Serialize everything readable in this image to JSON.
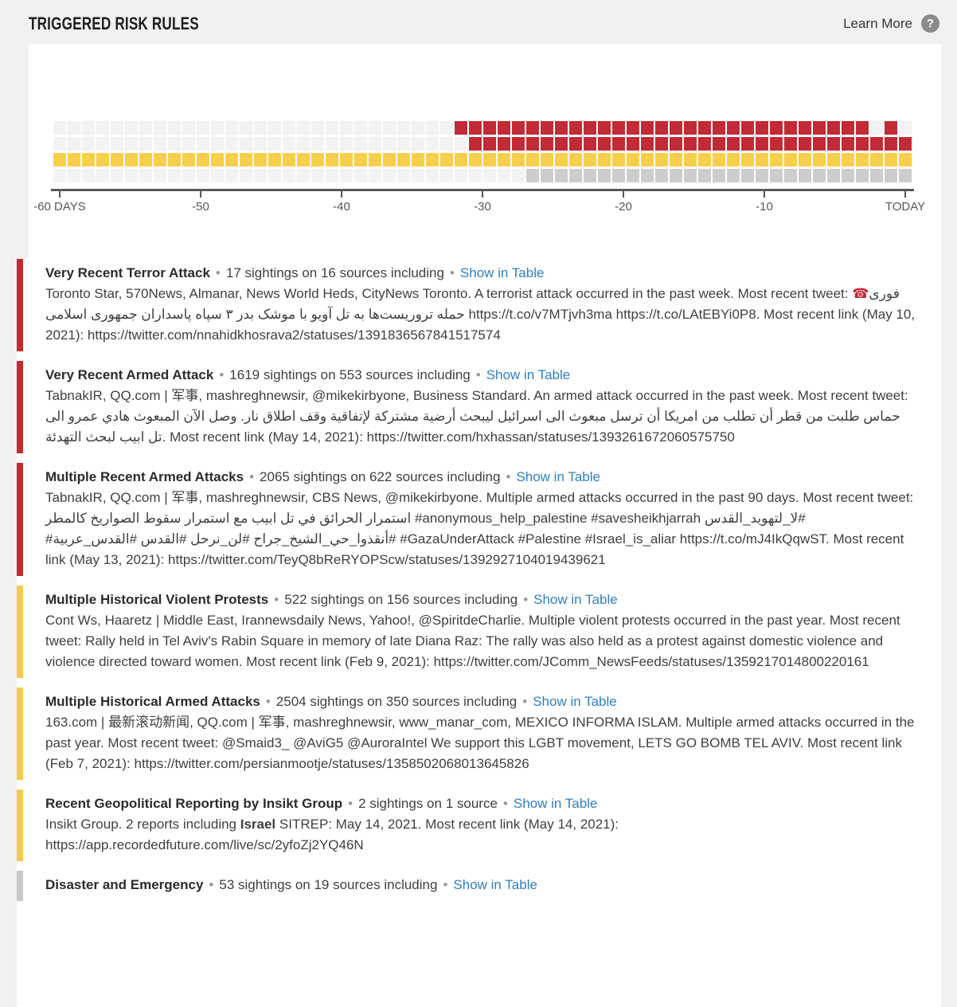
{
  "header": {
    "title": "TRIGGERED RISK RULES",
    "learn_more": "Learn More",
    "help_icon": "?"
  },
  "chart_data": {
    "type": "heatmap",
    "title": "Triggered risk rules over the last 60 days",
    "columns": 60,
    "x_axis": {
      "tick_labels": [
        "-60 DAYS",
        "-50",
        "-40",
        "-30",
        "-20",
        "-10",
        "TODAY"
      ],
      "range_days": 60,
      "grid": false
    },
    "empty_color": "#f4f3f3",
    "rows": [
      {
        "name": "critical-row-1",
        "color": "#c22b35",
        "segments": [
          [
            28,
            56
          ],
          [
            58,
            58
          ]
        ]
      },
      {
        "name": "critical-row-2",
        "color": "#c22b35",
        "segments": [
          [
            29,
            59
          ]
        ]
      },
      {
        "name": "warning-row",
        "color": "#f8cf4c",
        "segments": [
          [
            0,
            59
          ]
        ]
      },
      {
        "name": "info-row",
        "color": "#cdcdcd",
        "segments": [
          [
            33,
            59
          ]
        ]
      }
    ]
  },
  "rules": {
    "separator": "•",
    "entries": [
      {
        "severity": "critical",
        "color": "#c22b35",
        "title": "Very Recent Terror Attack",
        "meta": "17 sightings on 16 sources including",
        "link_label": "Show in Table",
        "body": [
          {
            "t": "Toronto Star, 570News, Almanar, News World Heds, CityNews Toronto. A terrorist attack occurred in the past week. Most recent tweet: "
          },
          {
            "t": "☎",
            "emoji": true
          },
          {
            "t": "فوری حمله تروریست‌ها به تل آویو با موشک بدر ۳ سپاه پاسداران جمهوری اسلامی",
            "rtl": true
          },
          {
            "t": " https://t.co/v7MTjvh3ma https://t.co/LAtEBYi0P8. Most recent link (May 10, 2021): https://twitter.com/nnahidkhosrava2/statuses/1391836567841517574"
          }
        ]
      },
      {
        "severity": "critical",
        "color": "#c22b35",
        "title": "Very Recent Armed Attack",
        "meta": "1619 sightings on 553 sources including",
        "link_label": "Show in Table",
        "body": [
          {
            "t": "TabnakIR, QQ.com | 军事, mashreghnewsir, @mikekirbyone, Business Standard. An armed attack occurred in the past week. Most recent tweet: "
          },
          {
            "t": "حماس طلبت من قطر أن تطلب من امريكا أن ترسل مبعوث الى اسرائيل ليبحث أرضية مشتركة لإتفاقية وقف اطلاق نار. وصل الآن المبعوث هادي عمرو الى تل ابيب لبحث التهدئة",
            "rtl": true
          },
          {
            "t": ". Most recent link (May 14, 2021): https://twitter.com/hxhassan/statuses/1393261672060575750"
          }
        ]
      },
      {
        "severity": "critical",
        "color": "#c22b35",
        "title": "Multiple Recent Armed Attacks",
        "meta": "2065 sightings on 622 sources including",
        "link_label": "Show in Table",
        "body": [
          {
            "t": "TabnakIR, QQ.com | 军事, mashreghnewsir, CBS News, @mikekirbyone. Multiple armed attacks occurred in the past 90 days. Most recent tweet: "
          },
          {
            "t": "استمرار الحرائق في تل ابيب مع استمرار سقوط الصواريخ كالمطر",
            "rtl": true
          },
          {
            "t": " #anonymous_help_palestine #savesheikhjarrah "
          },
          {
            "t": "#لا_لتهويد_القدس #أنقذوا_حي_الشيخ_جراح #لن_نرحل #القدس #القدس_عربية#",
            "rtl": true
          },
          {
            "t": " #GazaUnderAttack #Palestine #Israel_is_aliar https://t.co/mJ4IkQqwST. Most recent link (May 13, 2021): https://twitter.com/TeyQ8bReRYOPScw/statuses/1392927104019439621"
          }
        ]
      },
      {
        "severity": "warning",
        "color": "#f6c84f",
        "title": "Multiple Historical Violent Protests",
        "meta": "522 sightings on 156 sources including",
        "link_label": "Show in Table",
        "body": [
          {
            "t": "Cont Ws, Haaretz | Middle East, Irannewsdaily News, Yahoo!, @SpiritdeCharlie. Multiple violent protests occurred in the past year. Most recent tweet: Rally held in Tel Aviv's Rabin Square in memory of late Diana Raz: The rally was also held as a protest against domestic violence and violence directed toward women. Most recent link (Feb 9, 2021): https://twitter.com/JComm_NewsFeeds/statuses/1359217014800220161"
          }
        ]
      },
      {
        "severity": "warning",
        "color": "#f6c84f",
        "title": "Multiple Historical Armed Attacks",
        "meta": "2504 sightings on 350 sources including",
        "link_label": "Show in Table",
        "body": [
          {
            "t": "163.com | 最新滚动新闻, QQ.com | 军事, mashreghnewsir, www_manar_com, MEXICO INFORMA ISLAM. Multiple armed attacks occurred in the past year. Most recent tweet: @Smaid3_ @AviG5 @AuroraIntel We support this LGBT movement, LETS GO BOMB TEL AVIV. Most recent link (Feb 7, 2021): https://twitter.com/persianmootje/statuses/1358502068013645826"
          }
        ]
      },
      {
        "severity": "warning",
        "color": "#f6c84f",
        "title": "Recent Geopolitical Reporting by Insikt Group",
        "meta": "2 sightings on 1 source",
        "link_label": "Show in Table",
        "body": [
          {
            "t": "Insikt Group. 2 reports including "
          },
          {
            "t": "Israel",
            "bold": true
          },
          {
            "t": " SITREP: May 14, 2021. Most recent link (May 14, 2021): https://app.recordedfuture.com/live/sc/2yfoZj2YQ46N"
          }
        ]
      },
      {
        "severity": "informational",
        "color": "#c9c9c9",
        "title": "Disaster and Emergency",
        "meta": "53 sightings on 19 sources including",
        "link_label": "Show in Table",
        "body": []
      }
    ]
  }
}
